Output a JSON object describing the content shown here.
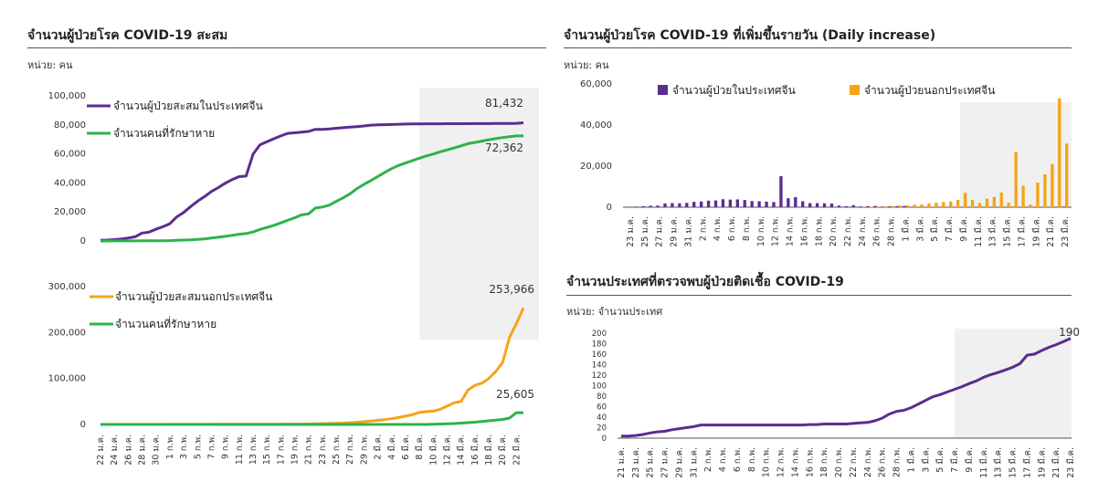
{
  "panels": {
    "cum_cn": {
      "title": "จำนวนผู้ป่วยโรค COVID-19 สะสม",
      "unit": "หน่วย: คน"
    },
    "daily": {
      "title": "จำนวนผู้ป่วยโรค COVID-19 ที่เพิ่มขึ้นรายวัน (Daily increase)",
      "unit": "หน่วย: คน"
    },
    "countries": {
      "title": "จำนวนประเทศที่ตรวจพบผู้ป่วยติดเชื้อ COVID-19",
      "unit": "หน่วย: จำนวนประเทศ"
    }
  },
  "colors": {
    "purple": "#5b2d8e",
    "green": "#2db34a",
    "orange": "#f5a418",
    "shade": "#f0f0f0"
  },
  "chart_data": [
    {
      "type": "line",
      "x": [
        "22 ม.ค.",
        "23 ม.ค.",
        "24 ม.ค.",
        "25 ม.ค.",
        "26 ม.ค.",
        "27 ม.ค.",
        "28 ม.ค.",
        "29 ม.ค.",
        "30 ม.ค.",
        "31 ม.ค.",
        "1 ก.พ.",
        "2 ก.พ.",
        "3 ก.พ.",
        "4 ก.พ.",
        "5 ก.พ.",
        "6 ก.พ.",
        "7 ก.พ.",
        "8 ก.พ.",
        "9 ก.พ.",
        "10 ก.พ.",
        "11 ก.พ.",
        "12 ก.พ.",
        "13 ก.พ.",
        "14 ก.พ.",
        "15 ก.พ.",
        "16 ก.พ.",
        "17 ก.พ.",
        "18 ก.พ.",
        "19 ก.พ.",
        "20 ก.พ.",
        "21 ก.พ.",
        "22 ก.พ.",
        "23 ก.พ.",
        "24 ก.พ.",
        "25 ก.พ.",
        "26 ก.พ.",
        "27 ก.พ.",
        "28 ก.พ.",
        "29 ก.พ.",
        "1 มี.ค.",
        "2 มี.ค.",
        "3 มี.ค.",
        "4 มี.ค.",
        "5 มี.ค.",
        "6 มี.ค.",
        "7 มี.ค.",
        "8 มี.ค.",
        "9 มี.ค.",
        "10 มี.ค.",
        "11 มี.ค.",
        "12 มี.ค.",
        "13 มี.ค.",
        "14 มี.ค.",
        "15 มี.ค.",
        "16 มี.ค.",
        "17 มี.ค.",
        "18 มี.ค.",
        "19 มี.ค.",
        "20 มี.ค.",
        "21 มี.ค.",
        "22 มี.ค.",
        "23 มี.ค."
      ],
      "x_tick_labels": [
        "22 ม.ค.",
        "24 ม.ค.",
        "26 ม.ค.",
        "28 ม.ค.",
        "30 ม.ค.",
        "1 ก.พ.",
        "3 ก.พ.",
        "5 ก.พ.",
        "7 ก.พ.",
        "9 ก.พ.",
        "11 ก.พ.",
        "13 ก.พ.",
        "15 ก.พ.",
        "17 ก.พ.",
        "19 ก.พ.",
        "21 ก.พ.",
        "23 ก.พ.",
        "25 ก.พ.",
        "27 ก.พ.",
        "29 ก.พ.",
        "2 มี.ค.",
        "4 มี.ค.",
        "6 มี.ค.",
        "8 มี.ค.",
        "10 มี.ค.",
        "12 มี.ค.",
        "14 มี.ค.",
        "16 มี.ค.",
        "18 มี.ค.",
        "20 มี.ค.",
        "22 มี.ค."
      ],
      "ylim": [
        0,
        100000
      ],
      "y_ticks": [
        "0",
        "20,000",
        "40,000",
        "60,000",
        "80,000",
        "100,000"
      ],
      "shade_from": "8 มี.ค.",
      "series": [
        {
          "name": "จำนวนผู้ป่วยสะสมในประเทศจีน",
          "color_key": "purple",
          "end_label": "81,432",
          "values": [
            548,
            639,
            916,
            1399,
            2062,
            2863,
            5494,
            6070,
            8124,
            9783,
            11871,
            16607,
            19693,
            23680,
            27409,
            30553,
            34075,
            36778,
            39790,
            42306,
            44327,
            44699,
            59832,
            66292,
            68347,
            70446,
            72364,
            74139,
            74546,
            74999,
            75472,
            76922,
            76938,
            77152,
            77660,
            78065,
            78498,
            78824,
            79251,
            79826,
            80026,
            80151,
            80271,
            80422,
            80573,
            80652,
            80699,
            80735,
            80754,
            80778,
            80793,
            80813,
            80824,
            80844,
            80860,
            80881,
            80894,
            80928,
            80967,
            81008,
            81093,
            81432
          ]
        },
        {
          "name": "จำนวนคนที่รักษาหาย",
          "color_key": "green",
          "end_label": "72,362",
          "values": [
            28,
            30,
            36,
            39,
            49,
            58,
            101,
            120,
            135,
            214,
            275,
            463,
            614,
            843,
            1115,
            1476,
            1996,
            2595,
            3218,
            3917,
            4635,
            5082,
            6217,
            7977,
            9298,
            10755,
            12462,
            14206,
            15962,
            18014,
            18704,
            22699,
            23383,
            24734,
            27323,
            29745,
            32495,
            36117,
            39002,
            41625,
            44462,
            47204,
            49856,
            52045,
            53726,
            55404,
            57065,
            58600,
            59897,
            61475,
            62793,
            64111,
            65541,
            67017,
            67910,
            68798,
            69755,
            70535,
            71266,
            71857,
            72362,
            72362
          ]
        }
      ]
    },
    {
      "type": "line",
      "ylim": [
        0,
        300000
      ],
      "y_ticks": [
        "0",
        "100,000",
        "200,000",
        "300,000"
      ],
      "shade_from": "8 มี.ค.",
      "series": [
        {
          "name": "จำนวนผู้ป่วยสะสมนอกประเทศจีน",
          "color_key": "orange",
          "end_label": "253,966",
          "values": [
            7,
            8,
            10,
            15,
            20,
            25,
            30,
            40,
            60,
            80,
            120,
            150,
            180,
            200,
            220,
            250,
            280,
            300,
            330,
            370,
            400,
            450,
            500,
            520,
            550,
            600,
            640,
            700,
            760,
            850,
            1000,
            1300,
            1700,
            2100,
            2500,
            3000,
            3700,
            4700,
            6000,
            7500,
            9000,
            10500,
            12500,
            15000,
            18000,
            21500,
            26000,
            28000,
            29000,
            33000,
            40000,
            47000,
            50000,
            75000,
            85000,
            90000,
            100000,
            115000,
            135000,
            190000,
            220000,
            253966
          ]
        },
        {
          "name": "จำนวนคนที่รักษาหาย",
          "color_key": "green",
          "end_label": "25,605",
          "values": [
            0,
            0,
            0,
            0,
            0,
            0,
            0,
            0,
            0,
            0,
            0,
            0,
            0,
            0,
            0,
            0,
            0,
            0,
            0,
            0,
            0,
            0,
            0,
            0,
            0,
            0,
            0,
            0,
            0,
            0,
            0,
            0,
            0,
            0,
            0,
            0,
            0,
            0,
            0,
            0,
            0,
            0,
            0,
            0,
            0,
            0,
            0,
            0,
            500,
            1000,
            1500,
            2000,
            3000,
            4000,
            5000,
            6500,
            8000,
            9500,
            11000,
            14000,
            25605,
            25605
          ]
        }
      ]
    },
    {
      "type": "bar",
      "categories": [
        "23 ม.ค.",
        "24 ม.ค.",
        "25 ม.ค.",
        "26 ม.ค.",
        "27 ม.ค.",
        "28 ม.ค.",
        "29 ม.ค.",
        "30 ม.ค.",
        "31 ม.ค.",
        "1 ก.พ.",
        "2 ก.พ.",
        "3 ก.พ.",
        "4 ก.พ.",
        "5 ก.พ.",
        "6 ก.พ.",
        "7 ก.พ.",
        "8 ก.พ.",
        "9 ก.พ.",
        "10 ก.พ.",
        "11 ก.พ.",
        "12 ก.พ.",
        "13 ก.พ.",
        "14 ก.พ.",
        "15 ก.พ.",
        "16 ก.พ.",
        "17 ก.พ.",
        "18 ก.พ.",
        "19 ก.พ.",
        "20 ก.พ.",
        "21 ก.พ.",
        "22 ก.พ.",
        "23 ก.พ.",
        "24 ก.พ.",
        "25 ก.พ.",
        "26 ก.พ.",
        "27 ก.พ.",
        "28 ก.พ.",
        "29 ก.พ.",
        "1 มี.ค.",
        "2 มี.ค.",
        "3 มี.ค.",
        "4 มี.ค.",
        "5 มี.ค.",
        "6 มี.ค.",
        "7 มี.ค.",
        "8 มี.ค.",
        "9 มี.ค.",
        "10 มี.ค.",
        "11 มี.ค.",
        "12 มี.ค.",
        "13 มี.ค.",
        "14 มี.ค.",
        "15 มี.ค.",
        "16 มี.ค.",
        "17 มี.ค.",
        "18 มี.ค.",
        "19 มี.ค.",
        "20 มี.ค.",
        "21 มี.ค.",
        "22 มี.ค.",
        "23 มี.ค."
      ],
      "x_tick_labels": [
        "23 ม.ค.",
        "25 ม.ค.",
        "27 ม.ค.",
        "29 ม.ค.",
        "31 ม.ค.",
        "2 ก.พ.",
        "4 ก.พ.",
        "6 ก.พ.",
        "8 ก.พ.",
        "10 ก.พ.",
        "12 ก.พ.",
        "14 ก.พ.",
        "16 ก.พ.",
        "18 ก.พ.",
        "20 ก.พ.",
        "22 ก.พ.",
        "24 ก.พ.",
        "26 ก.พ.",
        "28 ก.พ.",
        "1 มี.ค.",
        "3 มี.ค.",
        "5 มี.ค.",
        "7 มี.ค.",
        "9 มี.ค.",
        "11 มี.ค.",
        "13 มี.ค.",
        "15 มี.ค.",
        "17 มี.ค.",
        "19 มี.ค.",
        "21 มี.ค.",
        "23 มี.ค."
      ],
      "ylim": [
        0,
        60000
      ],
      "y_ticks": [
        "0",
        "20,000",
        "40,000",
        "60,000"
      ],
      "shade_from": "9 มี.ค.",
      "series": [
        {
          "name": "จำนวนผู้ป่วยในประเทศจีน",
          "color_key": "purple",
          "values": [
            200,
            300,
            500,
            700,
            800,
            1800,
            2000,
            1900,
            2100,
            2600,
            2800,
            3200,
            3300,
            3900,
            3700,
            3800,
            3500,
            3000,
            2900,
            2700,
            2500,
            15100,
            4400,
            4900,
            2900,
            2000,
            2000,
            1900,
            1800,
            800,
            500,
            1000,
            400,
            500,
            600,
            300,
            400,
            500,
            600,
            200,
            100,
            100,
            100,
            100,
            100,
            100,
            50,
            50,
            50,
            50,
            50,
            50,
            50,
            50,
            50,
            50,
            50,
            50,
            50,
            100,
            300
          ]
        },
        {
          "name": "จำนวนผู้ป่วยนอกประเทศจีน",
          "color_key": "orange",
          "values": [
            0,
            0,
            0,
            0,
            0,
            0,
            0,
            0,
            0,
            0,
            0,
            0,
            0,
            0,
            0,
            0,
            0,
            0,
            0,
            0,
            0,
            0,
            0,
            0,
            0,
            0,
            0,
            0,
            0,
            0,
            0,
            0,
            100,
            200,
            300,
            400,
            500,
            800,
            1000,
            1200,
            1400,
            1900,
            2200,
            2500,
            2800,
            3600,
            7000,
            3500,
            2000,
            4200,
            5000,
            7100,
            2200,
            27000,
            10500,
            1300,
            12000,
            16000,
            21000,
            53000,
            31000
          ]
        }
      ]
    },
    {
      "type": "line",
      "x": [
        "21 ม.ค.",
        "22 ม.ค.",
        "23 ม.ค.",
        "24 ม.ค.",
        "25 ม.ค.",
        "26 ม.ค.",
        "27 ม.ค.",
        "28 ม.ค.",
        "29 ม.ค.",
        "30 ม.ค.",
        "31 ม.ค.",
        "1 ก.พ.",
        "2 ก.พ.",
        "3 ก.พ.",
        "4 ก.พ.",
        "5 ก.พ.",
        "6 ก.พ.",
        "7 ก.พ.",
        "8 ก.พ.",
        "9 ก.พ.",
        "10 ก.พ.",
        "11 ก.พ.",
        "12 ก.พ.",
        "13 ก.พ.",
        "14 ก.พ.",
        "15 ก.พ.",
        "16 ก.พ.",
        "17 ก.พ.",
        "18 ก.พ.",
        "19 ก.พ.",
        "20 ก.พ.",
        "21 ก.พ.",
        "22 ก.พ.",
        "23 ก.พ.",
        "24 ก.พ.",
        "25 ก.พ.",
        "26 ก.พ.",
        "27 ก.พ.",
        "28 ก.พ.",
        "29 ก.พ.",
        "1 มี.ค.",
        "2 มี.ค.",
        "3 มี.ค.",
        "4 มี.ค.",
        "5 มี.ค.",
        "6 มี.ค.",
        "7 มี.ค.",
        "8 มี.ค.",
        "9 มี.ค.",
        "10 มี.ค.",
        "11 มี.ค.",
        "12 มี.ค.",
        "13 มี.ค.",
        "14 มี.ค.",
        "15 มี.ค.",
        "16 มี.ค.",
        "17 มี.ค.",
        "18 มี.ค.",
        "19 มี.ค.",
        "20 มี.ค.",
        "21 มี.ค.",
        "22 มี.ค.",
        "23 มี.ค."
      ],
      "x_tick_labels": [
        "21 ม.ค.",
        "23 ม.ค.",
        "25 ม.ค.",
        "27 ม.ค.",
        "29 ม.ค.",
        "31 ม.ค.",
        "2 ก.พ.",
        "4 ก.พ.",
        "6 ก.พ.",
        "8 ก.พ.",
        "10 ก.พ.",
        "12 ก.พ.",
        "14 ก.พ.",
        "16 ก.พ.",
        "18 ก.พ.",
        "20 ก.พ.",
        "22 ก.พ.",
        "24 ก.พ.",
        "26 ก.พ.",
        "28 ก.พ.",
        "1 มี.ค.",
        "3 มี.ค.",
        "5 มี.ค.",
        "7 มี.ค.",
        "9 มี.ค.",
        "11 มี.ค.",
        "13 มี.ค.",
        "15 มี.ค.",
        "17 มี.ค.",
        "19 มี.ค.",
        "21 มี.ค.",
        "23 มี.ค."
      ],
      "ylim": [
        0,
        200
      ],
      "y_ticks": [
        "0",
        "20",
        "40",
        "60",
        "80",
        "100",
        "120",
        "140",
        "160",
        "180",
        "200"
      ],
      "shade_from": "7 มี.ค.",
      "series": [
        {
          "name": "",
          "color_key": "purple",
          "end_label": "190",
          "values": [
            4,
            4,
            5,
            7,
            10,
            12,
            13,
            16,
            18,
            20,
            22,
            25,
            25,
            25,
            25,
            25,
            25,
            25,
            25,
            25,
            25,
            25,
            25,
            25,
            25,
            25,
            26,
            26,
            27,
            27,
            27,
            27,
            28,
            29,
            30,
            33,
            38,
            46,
            51,
            53,
            58,
            65,
            72,
            79,
            83,
            88,
            93,
            98,
            104,
            109,
            116,
            121,
            125,
            130,
            135,
            142,
            158,
            160,
            167,
            173,
            178,
            184,
            190
          ]
        }
      ]
    }
  ]
}
